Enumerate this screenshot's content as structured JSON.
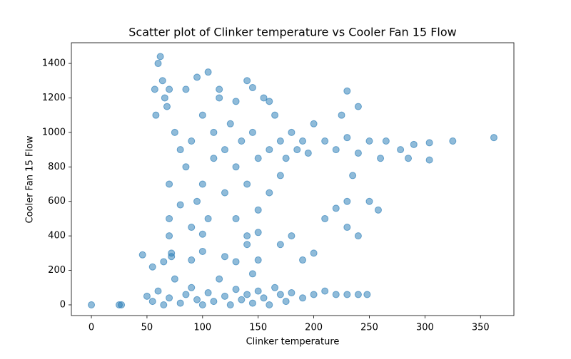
{
  "chart_data": {
    "type": "scatter",
    "title": "Scatter plot of Clinker temperature vs Cooler Fan 15 Flow",
    "x_label": "Clinker temperature",
    "y_label": "Cooler Fan 15 Flow",
    "color": "#1f77b4",
    "grid": false,
    "xlim": [
      -18,
      380
    ],
    "ylim": [
      -62,
      1520
    ],
    "xticks": [
      0,
      50,
      100,
      150,
      200,
      250,
      300,
      350
    ],
    "yticks": [
      0,
      200,
      400,
      600,
      800,
      1000,
      1200,
      1400
    ],
    "x": [
      0,
      25,
      27,
      50,
      55,
      60,
      65,
      70,
      75,
      80,
      85,
      90,
      95,
      100,
      105,
      110,
      115,
      120,
      125,
      130,
      135,
      140,
      145,
      150,
      155,
      160,
      165,
      170,
      175,
      180,
      190,
      200,
      210,
      220,
      230,
      240,
      248,
      46,
      55,
      57,
      58,
      60,
      62,
      64,
      66,
      68,
      70,
      72,
      70,
      70,
      70,
      72,
      65,
      75,
      80,
      85,
      90,
      95,
      100,
      100,
      105,
      110,
      110,
      115,
      120,
      120,
      125,
      130,
      130,
      135,
      140,
      140,
      145,
      150,
      150,
      155,
      160,
      160,
      165,
      170,
      170,
      175,
      180,
      185,
      190,
      195,
      200,
      85,
      95,
      105,
      115,
      145,
      150,
      140,
      90,
      100,
      80,
      130,
      160,
      210,
      220,
      230,
      240,
      250,
      260,
      265,
      225,
      230,
      240,
      235,
      230,
      220,
      230,
      240,
      210,
      200,
      190,
      250,
      258,
      180,
      170,
      140,
      130,
      100,
      90,
      120,
      150,
      145,
      278,
      285,
      290,
      304,
      304,
      325,
      362
    ],
    "y": [
      0,
      0,
      0,
      50,
      20,
      80,
      0,
      40,
      150,
      10,
      60,
      100,
      30,
      0,
      70,
      20,
      150,
      50,
      0,
      90,
      30,
      60,
      10,
      80,
      40,
      0,
      100,
      60,
      20,
      70,
      40,
      60,
      80,
      60,
      60,
      60,
      60,
      290,
      220,
      1250,
      1100,
      1400,
      1440,
      1300,
      1200,
      1150,
      1250,
      280,
      700,
      500,
      400,
      300,
      250,
      1000,
      900,
      800,
      950,
      600,
      1100,
      700,
      500,
      1000,
      850,
      1250,
      900,
      650,
      1050,
      800,
      500,
      950,
      1300,
      700,
      1000,
      850,
      550,
      1200,
      900,
      650,
      1100,
      950,
      750,
      850,
      1000,
      900,
      950,
      880,
      1050,
      1250,
      1320,
      1350,
      1200,
      1260,
      420,
      400,
      450,
      410,
      580,
      1180,
      1180,
      950,
      900,
      970,
      880,
      950,
      850,
      950,
      1100,
      1240,
      1150,
      750,
      600,
      560,
      450,
      400,
      500,
      300,
      260,
      600,
      550,
      400,
      350,
      350,
      250,
      310,
      260,
      280,
      260,
      180,
      900,
      850,
      930,
      940,
      840,
      950,
      970
    ]
  }
}
